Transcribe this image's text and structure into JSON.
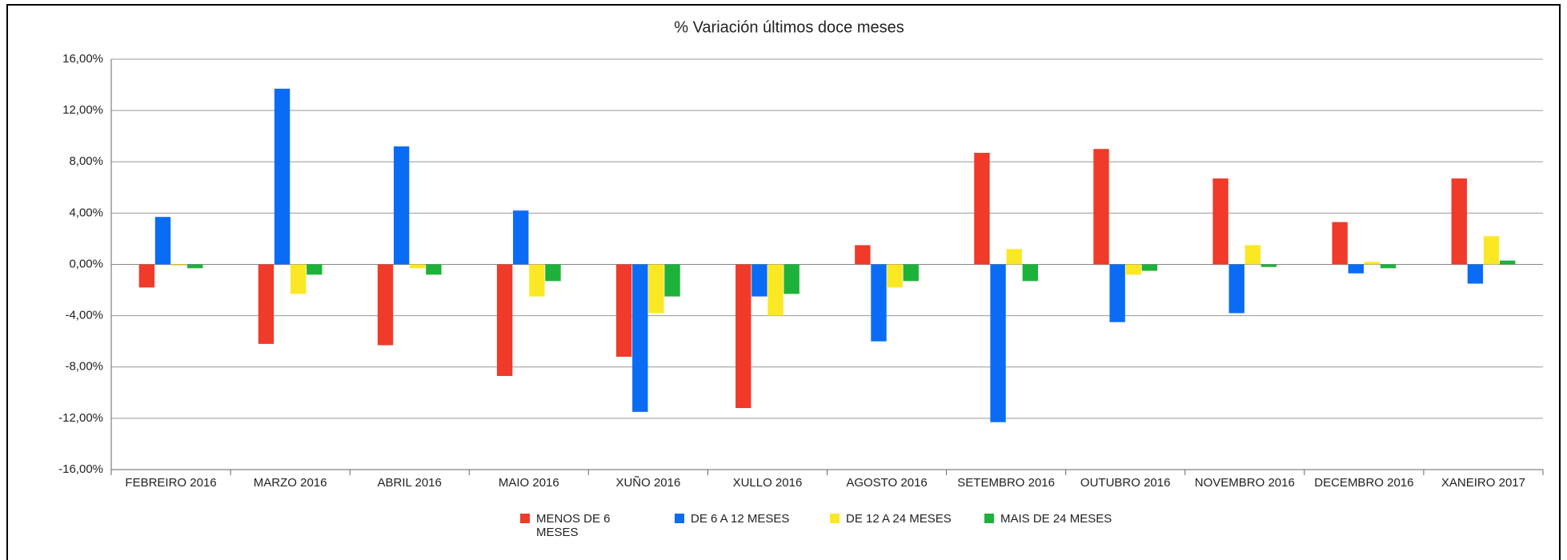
{
  "chart_data": {
    "type": "bar",
    "title": "% Variación últimos doce meses",
    "categories": [
      "FEBREIRO 2016",
      "MARZO 2016",
      "ABRIL 2016",
      "MAIO 2016",
      "XUÑO 2016",
      "XULLO 2016",
      "AGOSTO 2016",
      "SETEMBRO 2016",
      "OUTUBRO 2016",
      "NOVEMBRO 2016",
      "DECEMBRO 2016",
      "XANEIRO 2017"
    ],
    "series": [
      {
        "name": "MENOS DE 6 MESES",
        "color": "#f03a2a",
        "values": [
          -1.8,
          -6.2,
          -6.3,
          -8.7,
          -7.2,
          -11.2,
          1.5,
          8.7,
          9.0,
          6.7,
          3.3,
          6.7
        ]
      },
      {
        "name": "DE 6 A 12 MESES",
        "color": "#0a6cf5",
        "values": [
          3.7,
          13.7,
          9.2,
          4.2,
          -11.5,
          -2.5,
          -6.0,
          -12.3,
          -4.5,
          -3.8,
          -0.7,
          -1.5
        ]
      },
      {
        "name": "DE 12 A 24 MESES",
        "color": "#fbe824",
        "values": [
          -0.1,
          -2.3,
          -0.3,
          -2.5,
          -3.8,
          -4.0,
          -1.8,
          1.2,
          -0.8,
          1.5,
          0.2,
          2.2
        ]
      },
      {
        "name": "MAIS DE 24 MESES",
        "color": "#1db23a",
        "values": [
          -0.3,
          -0.8,
          -0.8,
          -1.3,
          -2.5,
          -2.3,
          -1.3,
          -1.3,
          -0.5,
          -0.2,
          -0.3,
          0.3
        ]
      }
    ],
    "ylim": [
      -16,
      16
    ],
    "yticks": [
      {
        "value": -16,
        "label": "-16,00%"
      },
      {
        "value": -12,
        "label": "-12,00%"
      },
      {
        "value": -8,
        "label": "-8,00%"
      },
      {
        "value": -4,
        "label": "-4,00%"
      },
      {
        "value": 0,
        "label": "0,00%"
      },
      {
        "value": 4,
        "label": "4,00%"
      },
      {
        "value": 8,
        "label": "8,00%"
      },
      {
        "value": 12,
        "label": "12,00%"
      },
      {
        "value": 16,
        "label": "16,00%"
      }
    ],
    "grid": true
  }
}
